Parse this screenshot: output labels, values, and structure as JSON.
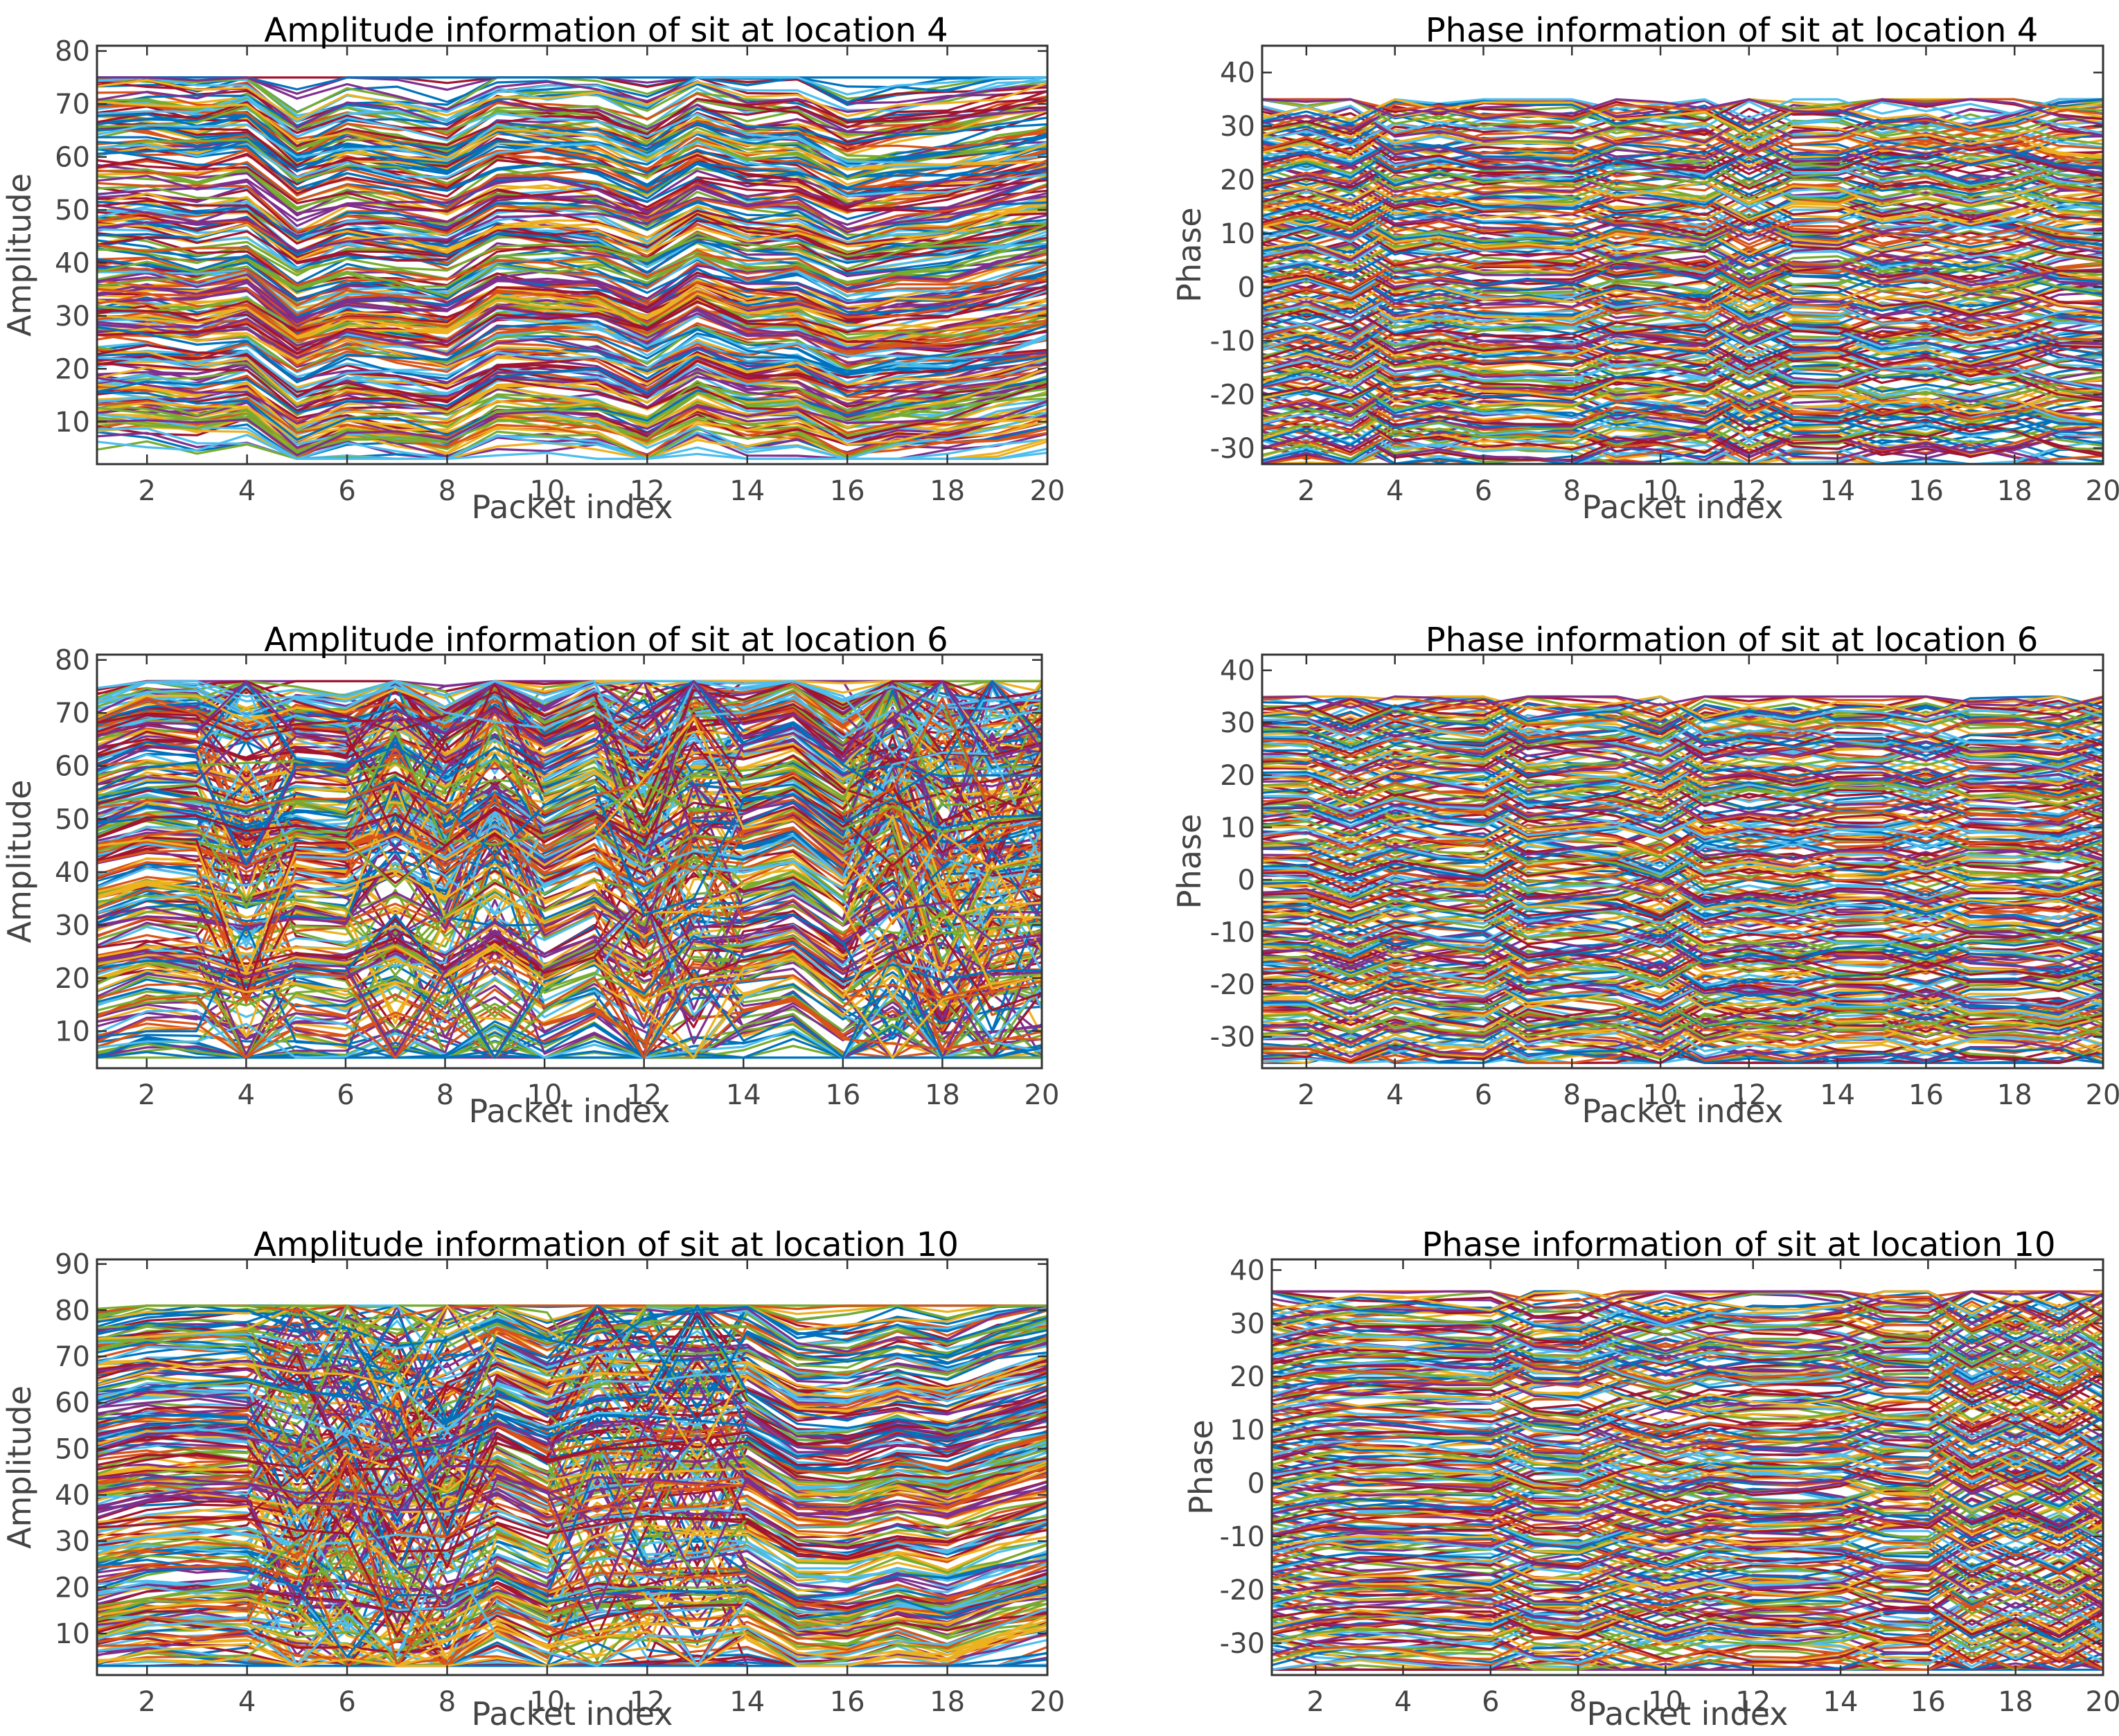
{
  "palette": [
    "#0072bd",
    "#d95319",
    "#edb120",
    "#7e2f8e",
    "#77ac30",
    "#4dbeee",
    "#a2142f"
  ],
  "chart_data": [
    {
      "type": "line",
      "title": "Amplitude information of sit at location 4",
      "xlabel": "Packet index",
      "ylabel": "Amplitude",
      "xlim": [
        1,
        20
      ],
      "ylim": [
        2,
        81
      ],
      "xticks": [
        2,
        4,
        6,
        8,
        10,
        12,
        14,
        16,
        18,
        20
      ],
      "yticks": [
        10,
        20,
        30,
        40,
        50,
        60,
        70,
        80
      ],
      "grid": false,
      "legend": "none",
      "series_count": 270,
      "value_range": [
        3,
        75
      ]
    },
    {
      "type": "line",
      "title": "Phase information of sit  at location 4",
      "xlabel": "Packet index",
      "ylabel": "Phase",
      "xlim": [
        1,
        20
      ],
      "ylim": [
        -33,
        45
      ],
      "xticks": [
        2,
        4,
        6,
        8,
        10,
        12,
        14,
        16,
        18,
        20
      ],
      "yticks": [
        -30,
        -20,
        -10,
        0,
        10,
        20,
        30,
        40
      ],
      "grid": false,
      "legend": "none",
      "series_count": 270,
      "value_range": [
        -33,
        35
      ]
    },
    {
      "type": "line",
      "title": "Amplitude information of sit at location 6",
      "xlabel": "Packet index",
      "ylabel": "Amplitude",
      "xlim": [
        1,
        20
      ],
      "ylim": [
        3,
        81
      ],
      "xticks": [
        2,
        4,
        6,
        8,
        10,
        12,
        14,
        16,
        18,
        20
      ],
      "yticks": [
        10,
        20,
        30,
        40,
        50,
        60,
        70,
        80
      ],
      "grid": false,
      "legend": "none",
      "series_count": 270,
      "value_range": [
        5,
        76
      ]
    },
    {
      "type": "line",
      "title": "Phase information of sit at location 6",
      "xlabel": "Packet index",
      "ylabel": "Phase",
      "xlim": [
        1,
        20
      ],
      "ylim": [
        -36,
        43
      ],
      "xticks": [
        2,
        4,
        6,
        8,
        10,
        12,
        14,
        16,
        18,
        20
      ],
      "yticks": [
        -30,
        -20,
        -10,
        0,
        10,
        20,
        30,
        40
      ],
      "grid": false,
      "legend": "none",
      "series_count": 270,
      "value_range": [
        -35,
        35
      ]
    },
    {
      "type": "line",
      "title": "Amplitude information of sit at location 10",
      "xlabel": "Packet index",
      "ylabel": "Amplitude",
      "xlim": [
        1,
        20
      ],
      "ylim": [
        1,
        91
      ],
      "xticks": [
        2,
        4,
        6,
        8,
        10,
        12,
        14,
        16,
        18,
        20
      ],
      "yticks": [
        10,
        20,
        30,
        40,
        50,
        60,
        70,
        80,
        90
      ],
      "grid": false,
      "legend": "none",
      "series_count": 270,
      "value_range": [
        3,
        81
      ]
    },
    {
      "type": "line",
      "title": "Phase information of sit at location 10",
      "xlabel": "Packet index",
      "ylabel": "Phase",
      "xlim": [
        1,
        20
      ],
      "ylim": [
        -36,
        42
      ],
      "xticks": [
        2,
        4,
        6,
        8,
        10,
        12,
        14,
        16,
        18,
        20
      ],
      "yticks": [
        -30,
        -20,
        -10,
        0,
        10,
        20,
        30,
        40
      ],
      "grid": false,
      "legend": "none",
      "series_count": 270,
      "value_range": [
        -35,
        36
      ]
    }
  ]
}
